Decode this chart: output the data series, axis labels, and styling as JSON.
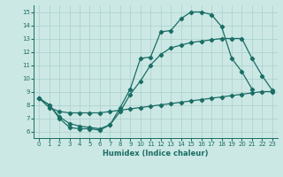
{
  "xlabel": "Humidex (Indice chaleur)",
  "bg_color": "#cce8e4",
  "grid_color": "#aacfcc",
  "line_color": "#1a6e65",
  "xlim": [
    -0.5,
    23.5
  ],
  "ylim": [
    5.5,
    15.5
  ],
  "xticks": [
    0,
    1,
    2,
    3,
    4,
    5,
    6,
    7,
    8,
    9,
    10,
    11,
    12,
    13,
    14,
    15,
    16,
    17,
    18,
    19,
    20,
    21,
    22,
    23
  ],
  "yticks": [
    6,
    7,
    8,
    9,
    10,
    11,
    12,
    13,
    14,
    15
  ],
  "series1_x": [
    0,
    1,
    2,
    3,
    4,
    5,
    6,
    7,
    8,
    9,
    10,
    11,
    12,
    13,
    14,
    15,
    16,
    17,
    18,
    19,
    20,
    21
  ],
  "series1_y": [
    8.5,
    8.0,
    7.0,
    6.3,
    6.2,
    6.2,
    6.1,
    6.5,
    7.8,
    9.2,
    11.5,
    11.6,
    13.5,
    13.6,
    14.5,
    15.0,
    15.0,
    14.8,
    13.9,
    11.5,
    10.5,
    9.2
  ],
  "series2_x": [
    0,
    1,
    2,
    3,
    4,
    5,
    6,
    7,
    8,
    9,
    10,
    11,
    12,
    13,
    14,
    15,
    16,
    17,
    18,
    19,
    20,
    21,
    22,
    23
  ],
  "series2_y": [
    8.5,
    8.0,
    7.1,
    6.6,
    6.4,
    6.3,
    6.2,
    6.5,
    7.5,
    8.8,
    9.8,
    11.0,
    11.8,
    12.3,
    12.5,
    12.7,
    12.8,
    12.9,
    13.0,
    13.0,
    13.0,
    11.5,
    10.2,
    9.1
  ],
  "series3_x": [
    0,
    1,
    2,
    3,
    4,
    5,
    6,
    7,
    8,
    9,
    10,
    11,
    12,
    13,
    14,
    15,
    16,
    17,
    18,
    19,
    20,
    21,
    22,
    23
  ],
  "series3_y": [
    8.5,
    7.8,
    7.5,
    7.4,
    7.4,
    7.4,
    7.4,
    7.5,
    7.6,
    7.7,
    7.8,
    7.9,
    8.0,
    8.1,
    8.2,
    8.3,
    8.4,
    8.5,
    8.6,
    8.7,
    8.8,
    8.9,
    9.0,
    9.0
  ]
}
